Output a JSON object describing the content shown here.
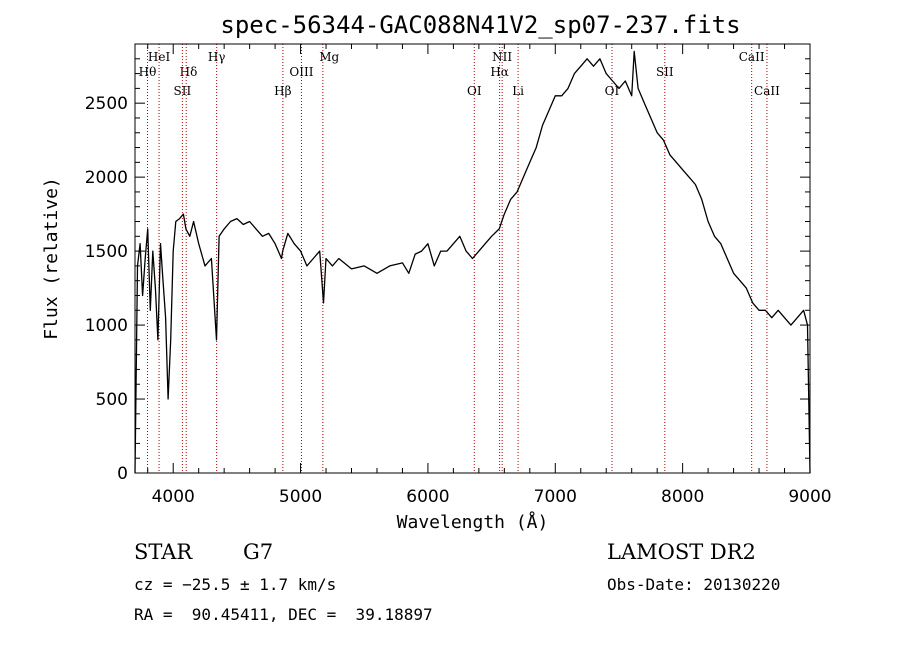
{
  "chart_data": {
    "type": "line",
    "title": "spec-56344-GAC088N41V2_sp07-237.fits",
    "xlabel": "Wavelength (Å)",
    "ylabel": "Flux (relative)",
    "xlim": [
      3700,
      9000
    ],
    "ylim": [
      0,
      2900
    ],
    "xticks": [
      4000,
      5000,
      6000,
      7000,
      8000,
      9000
    ],
    "yticks": [
      0,
      500,
      1000,
      1500,
      2000,
      2500
    ],
    "line_color": "#000000",
    "marker_color": "#b00000",
    "grid": false,
    "series": [
      {
        "x": [
          3700,
          3720,
          3740,
          3760,
          3780,
          3800,
          3820,
          3840,
          3860,
          3880,
          3900,
          3920,
          3940,
          3960,
          3980,
          4000,
          4020,
          4050,
          4080,
          4100,
          4130,
          4160,
          4200,
          4250,
          4300,
          4340,
          4360,
          4400,
          4450,
          4500,
          4550,
          4600,
          4650,
          4700,
          4750,
          4800,
          4850,
          4860,
          4900,
          4950,
          5000,
          5050,
          5100,
          5150,
          5180,
          5200,
          5250,
          5300,
          5400,
          5500,
          5600,
          5700,
          5800,
          5850,
          5900,
          5950,
          6000,
          6050,
          6100,
          6150,
          6200,
          6250,
          6300,
          6350,
          6400,
          6450,
          6500,
          6560,
          6600,
          6650,
          6700,
          6750,
          6800,
          6850,
          6900,
          6950,
          7000,
          7050,
          7100,
          7150,
          7200,
          7250,
          7300,
          7350,
          7400,
          7450,
          7500,
          7550,
          7600,
          7620,
          7650,
          7700,
          7750,
          7800,
          7850,
          7900,
          7950,
          8000,
          8050,
          8100,
          8150,
          8200,
          8250,
          8300,
          8350,
          8400,
          8450,
          8500,
          8550,
          8600,
          8650,
          8700,
          8750,
          8800,
          8850,
          8900,
          8950,
          8980,
          9000
        ],
        "y": [
          0,
          1400,
          1550,
          1200,
          1450,
          1650,
          1100,
          1500,
          1250,
          900,
          1550,
          1300,
          1050,
          500,
          900,
          1500,
          1700,
          1720,
          1750,
          1650,
          1600,
          1700,
          1550,
          1400,
          1450,
          900,
          1600,
          1650,
          1700,
          1720,
          1680,
          1700,
          1650,
          1600,
          1620,
          1550,
          1450,
          1500,
          1620,
          1550,
          1500,
          1400,
          1450,
          1500,
          1150,
          1450,
          1400,
          1450,
          1380,
          1400,
          1350,
          1400,
          1420,
          1350,
          1480,
          1500,
          1550,
          1400,
          1500,
          1500,
          1550,
          1600,
          1500,
          1450,
          1500,
          1550,
          1600,
          1650,
          1750,
          1850,
          1900,
          2000,
          2100,
          2200,
          2350,
          2450,
          2550,
          2550,
          2600,
          2700,
          2750,
          2800,
          2750,
          2800,
          2700,
          2650,
          2600,
          2650,
          2550,
          2850,
          2600,
          2500,
          2400,
          2300,
          2250,
          2150,
          2100,
          2050,
          2000,
          1950,
          1850,
          1700,
          1600,
          1550,
          1450,
          1350,
          1300,
          1250,
          1150,
          1100,
          1100,
          1050,
          1100,
          1050,
          1000,
          1050,
          1100,
          1000,
          0
        ]
      }
    ],
    "annotations": [
      "HeI",
      "Hθ",
      "Hδ",
      "SII",
      "Hγ",
      "Hβ",
      "OIII",
      "Mg",
      "OI",
      "NII",
      "Hα",
      "Li",
      "OI",
      "SII",
      "CaII",
      "CaII"
    ]
  },
  "info": {
    "class_label": "STAR",
    "subclass": "G7",
    "redshift_text": "cz = −25.5 ± 1.7 km/s",
    "coordinates_text": "RA =  90.45411, DEC =  39.18897",
    "survey": "LAMOST DR2",
    "obs_date_text": "Obs-Date: 20130220"
  }
}
